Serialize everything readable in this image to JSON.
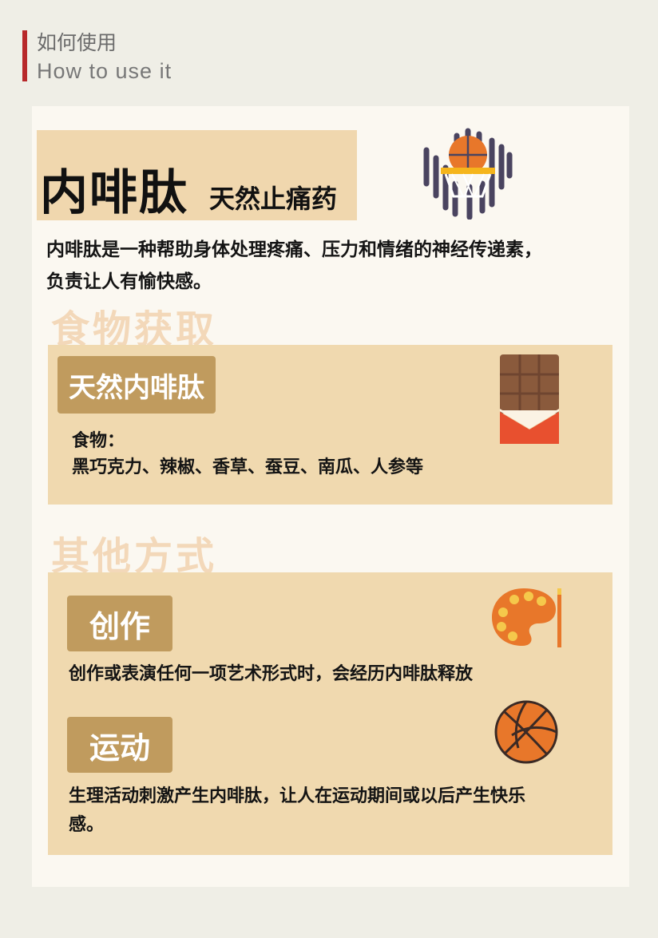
{
  "header": {
    "title_zh": "如何使用",
    "title_en": "How to use it"
  },
  "title": {
    "main": "内啡肽",
    "sub": "天然止痛药"
  },
  "intro": {
    "line1": "内啡肽是一种帮助身体处理疼痛、压力和情绪的神经传递素，",
    "line2": "负责让人有愉快感。"
  },
  "food_section": {
    "heading": "食物获取",
    "tag": "天然内啡肽",
    "label": "食物：",
    "items": "黑巧克力、辣椒、香草、蚕豆、南瓜、人参等"
  },
  "other_section": {
    "heading": "其他方式",
    "creation": {
      "tag": "创作",
      "text": "创作或表演任何一项艺术形式时，会经历内啡肽释放"
    },
    "exercise": {
      "tag": "运动",
      "text_line1": "生理活动刺激产生内啡肽，让人在运动期间或以后产生快乐",
      "text_line2": "感。"
    }
  },
  "icons": {
    "hoop": "basketball-hoop-icon",
    "chocolate": "chocolate-bar-icon",
    "palette": "paint-palette-icon",
    "ball": "basketball-icon"
  },
  "colors": {
    "accent_red": "#b8282a",
    "panel": "#f0d9af",
    "tag": "#c09b5e",
    "section_heading": "#f3d8b9",
    "orange": "#e8772a"
  }
}
